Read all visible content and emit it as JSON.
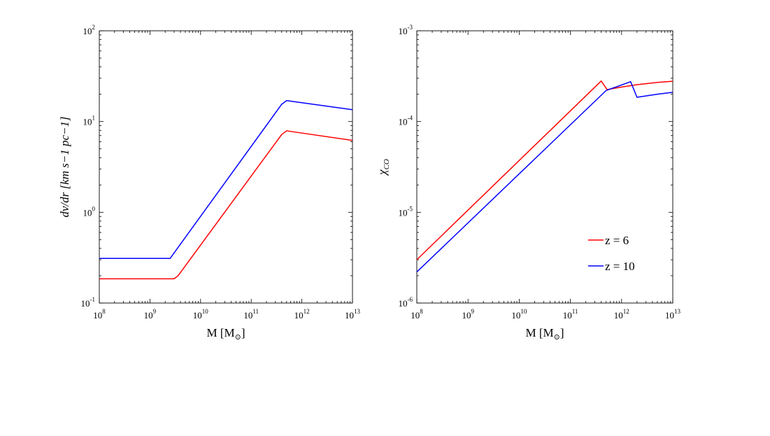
{
  "chart_data": [
    {
      "type": "line",
      "xlabel": "M [M",
      "xlabel_sub": "⊙",
      "xlabel_end": "]",
      "ylabel": "dv/dr [km s−1 pc−1]",
      "xscale": "log",
      "yscale": "log",
      "xlim": [
        100000000.0,
        10000000000000.0
      ],
      "ylim": [
        0.1,
        100
      ],
      "xticks": [
        {
          "base": "10",
          "exp": "8"
        },
        {
          "base": "10",
          "exp": "9"
        },
        {
          "base": "10",
          "exp": "10"
        },
        {
          "base": "10",
          "exp": "11"
        },
        {
          "base": "10",
          "exp": "12"
        },
        {
          "base": "10",
          "exp": "13"
        }
      ],
      "yticks": [
        {
          "base": "10",
          "exp": "-1"
        },
        {
          "base": "10",
          "exp": "0"
        },
        {
          "base": "10",
          "exp": "1"
        },
        {
          "base": "10",
          "exp": "2"
        }
      ],
      "series": [
        {
          "color": "#ff0000",
          "x": [
            100000000.0,
            3000000000.0,
            3600000000.0,
            400000000000.0,
            500000000000.0,
            10000000000000.0
          ],
          "y": [
            0.185,
            0.185,
            0.2,
            7.2,
            7.9,
            6.2
          ]
        },
        {
          "color": "#0000ff",
          "x": [
            100000000.0,
            2500000000.0,
            400000000000.0,
            500000000000.0,
            10000000000000.0
          ],
          "y": [
            0.31,
            0.31,
            15.5,
            17.0,
            13.5
          ]
        }
      ]
    },
    {
      "type": "line",
      "xlabel": "M [M",
      "xlabel_sub": "⊙",
      "xlabel_end": "]",
      "ylabel": "χ",
      "ylabel_sub": "CO",
      "xscale": "log",
      "yscale": "log",
      "xlim": [
        100000000.0,
        10000000000000.0
      ],
      "ylim": [
        1e-06,
        0.001
      ],
      "xticks": [
        {
          "base": "10",
          "exp": "8"
        },
        {
          "base": "10",
          "exp": "9"
        },
        {
          "base": "10",
          "exp": "10"
        },
        {
          "base": "10",
          "exp": "11"
        },
        {
          "base": "10",
          "exp": "12"
        },
        {
          "base": "10",
          "exp": "13"
        }
      ],
      "yticks": [
        {
          "base": "10",
          "exp": "-6"
        },
        {
          "base": "10",
          "exp": "-5"
        },
        {
          "base": "10",
          "exp": "-4"
        },
        {
          "base": "10",
          "exp": "-3"
        }
      ],
      "legend_position": "lower-right",
      "series": [
        {
          "name": "z = 6",
          "color": "#ff0000",
          "x": [
            100000000.0,
            400000000000.0,
            520000000000.0,
            1000000000000.0,
            2000000000000.0,
            5000000000000.0,
            10000000000000.0
          ],
          "y": [
            3e-06,
            0.00028,
            0.000225,
            0.00024,
            0.000255,
            0.00027,
            0.000278
          ]
        },
        {
          "name": "z = 10",
          "color": "#0000ff",
          "x": [
            100000000.0,
            500000000000.0,
            1500000000000.0,
            2000000000000.0,
            5000000000000.0,
            10000000000000.0
          ],
          "y": [
            2.2e-06,
            0.00022,
            0.000275,
            0.000185,
            0.0002,
            0.00021
          ]
        }
      ]
    }
  ]
}
